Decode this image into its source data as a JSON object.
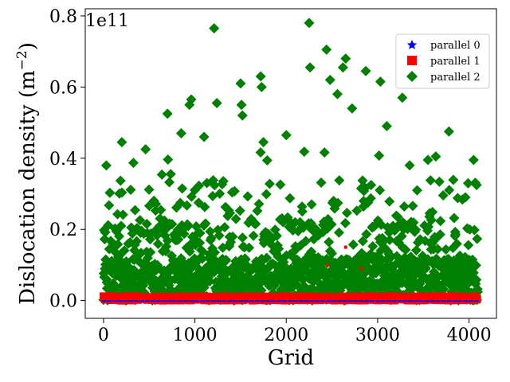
{
  "chart_data": {
    "type": "scatter",
    "title": "",
    "xlabel": "Grid",
    "ylabel": "Dislocation density (m",
    "ylabel_sup": "−2",
    "ylabel_close": ")",
    "y_offset_text": "1e11",
    "xlim": [
      -200,
      4300
    ],
    "ylim": [
      -5000000000.0,
      82000000000.0
    ],
    "xticks": [
      0,
      1000,
      2000,
      3000,
      4000
    ],
    "xtick_labels": [
      "0",
      "1000",
      "2000",
      "3000",
      "4000"
    ],
    "yticks": [
      0.0,
      20000000000.0,
      40000000000.0,
      60000000000.0,
      80000000000.0
    ],
    "ytick_labels": [
      "0.0",
      "0.2",
      "0.4",
      "0.6",
      "0.8"
    ],
    "grid": false,
    "legend_position": "top-right",
    "n_points": 4096,
    "series": [
      {
        "name": "parallel 0",
        "marker": "star",
        "color": "#0000ff",
        "typical_range": [
          0.0,
          200000000.0
        ],
        "description_values": "near zero for all grid points"
      },
      {
        "name": "parallel 1",
        "marker": "square",
        "color": "#ff0000",
        "typical_range": [
          0.0,
          2000000000.0
        ],
        "outliers": [
          [
            470,
            1200000000.0
          ],
          [
            1450,
            800000000.0
          ],
          [
            2450,
            10000000000.0
          ],
          [
            2650,
            15000000000.0
          ],
          [
            2820,
            9000000000.0
          ],
          [
            3700,
            1000000000.0
          ]
        ]
      },
      {
        "name": "parallel 2",
        "marker": "diamond",
        "color": "#008000",
        "typical_range": [
          0.0,
          30000000000.0
        ],
        "outliers": [
          [
            1210,
            76500000000.0
          ],
          [
            2250,
            78000000000.0
          ],
          [
            2260,
            65500000000.0
          ],
          [
            2440,
            70500000000.0
          ],
          [
            2650,
            68000000000.0
          ],
          [
            2620,
            65500000000.0
          ],
          [
            1500,
            61000000000.0
          ],
          [
            1720,
            63000000000.0
          ],
          [
            1730,
            60000000000.0
          ],
          [
            2870,
            64500000000.0
          ],
          [
            3030,
            61500000000.0
          ],
          [
            3270,
            57000000000.0
          ],
          [
            960,
            56500000000.0
          ],
          [
            940,
            55000000000.0
          ],
          [
            700,
            52500000000.0
          ],
          [
            1240,
            55500000000.0
          ],
          [
            1520,
            52000000000.0
          ],
          [
            1510,
            55000000000.0
          ],
          [
            2480,
            62000000000.0
          ],
          [
            2560,
            58000000000.0
          ],
          [
            2720,
            54000000000.0
          ],
          [
            3780,
            47500000000.0
          ],
          [
            200,
            44500000000.0
          ],
          [
            460,
            42500000000.0
          ],
          [
            1750,
            44500000000.0
          ],
          [
            2000,
            46500000000.0
          ],
          [
            3100,
            49000000000.0
          ],
          [
            4050,
            39500000000.0
          ],
          [
            3550,
            39500000000.0
          ],
          [
            3350,
            38000000000.0
          ],
          [
            850,
            47000000000.0
          ],
          [
            1100,
            46000000000.0
          ]
        ]
      }
    ]
  }
}
